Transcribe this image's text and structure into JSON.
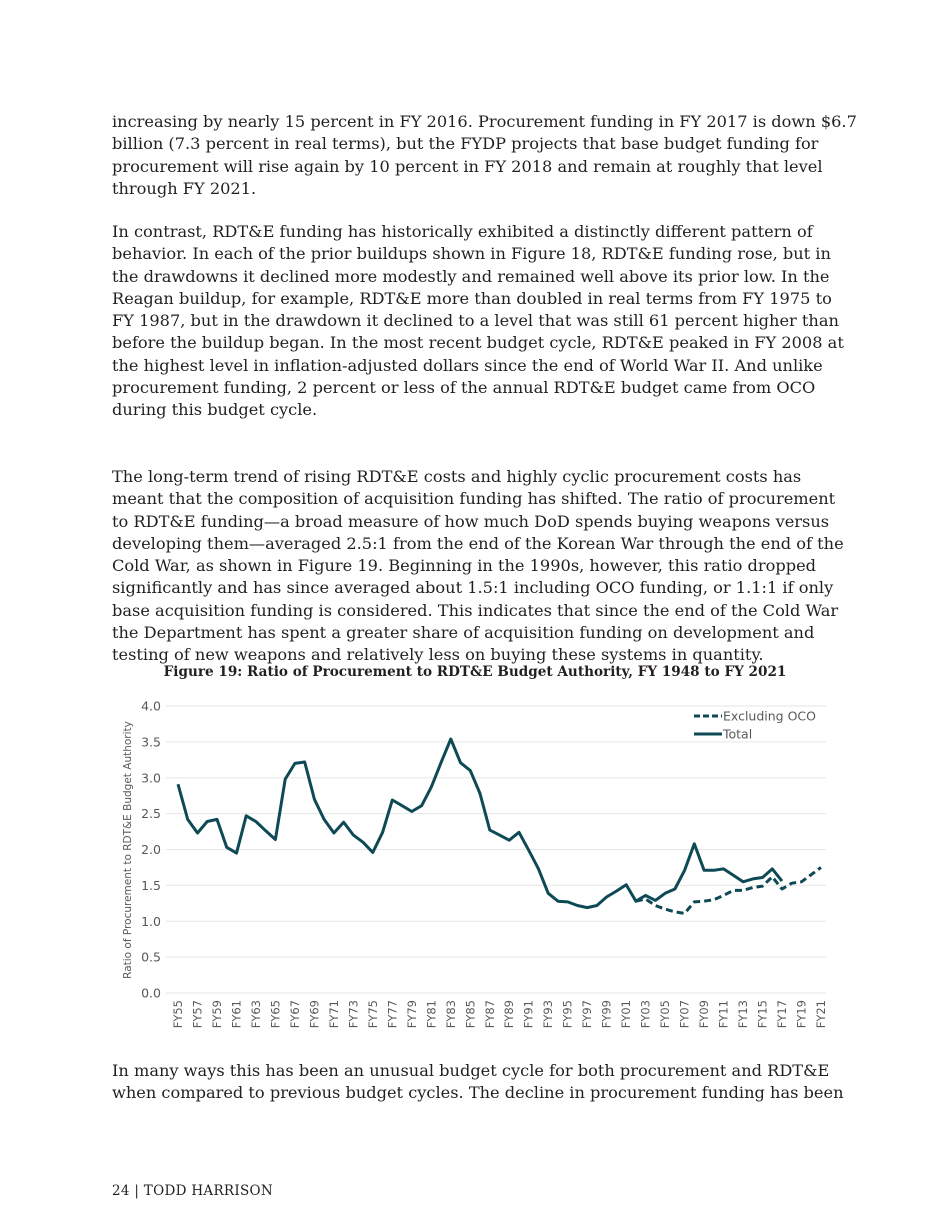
{
  "paragraphs": [
    [
      "increasing by nearly 15 percent in FY 2016. Procurement funding in FY 2017 is down $6.7",
      "billion (7.3 percent in real terms), but the FYDP projects that base budget funding for",
      "procurement will rise again by 10 percent in FY 2018 and remain at roughly that level",
      "through FY 2021."
    ],
    [
      "In contrast, RDT&E funding has historically exhibited a distinctly different pattern of",
      "behavior. In each of the prior buildups shown in Figure 18, RDT&E funding rose, but in",
      "the drawdowns it declined more modestly and remained well above its prior low. In the",
      "Reagan buildup, for example, RDT&E more than doubled in real terms from FY 1975 to",
      "FY 1987, but in the drawdown it declined to a level that was still 61 percent higher than",
      "before the buildup began. In the most recent budget cycle, RDT&E peaked in FY 2008 at",
      "the highest level in inflation-adjusted dollars since the end of World War II. And unlike",
      "procurement funding, 2 percent or less of the annual RDT&E budget came from OCO",
      "during this budget cycle."
    ],
    [
      "The long-term trend of rising RDT&E costs and highly cyclic procurement costs has",
      "meant that the composition of acquisition funding has shifted. The ratio of procurement",
      "to RDT&E funding—a broad measure of how much DoD spends buying weapons versus",
      "developing them—averaged 2.5:1 from the end of the Korean War through the end of the",
      "Cold War, as shown in Figure 19. Beginning in the 1990s, however, this ratio dropped",
      "significantly and has since averaged about 1.5:1 including OCO funding, or 1.1:1 if only",
      "base acquisition funding is considered. This indicates that since the end of the Cold War",
      "the Department has spent a greater share of acquisition funding on development and",
      "testing of new weapons and relatively less on buying these systems in quantity."
    ],
    [
      "In many ways this has been an unusual budget cycle for both procurement and RDT&E",
      "when compared to previous budget cycles. The decline in procurement funding has been"
    ]
  ],
  "figure_caption": "Figure 19: Ratio of Procurement to RDT&E Budget Authority, FY 1948 to FY 2021",
  "footer": "24 | TODD HARRISON",
  "chart_data": {
    "type": "line",
    "title": "",
    "ylabel": "Ratio of Procurement to RDT&E Budget Authority",
    "xlabel": "",
    "ylim": [
      0,
      4.0
    ],
    "yticks": [
      "0.0",
      "0.5",
      "1.0",
      "1.5",
      "2.0",
      "2.5",
      "3.0",
      "3.5",
      "4.0"
    ],
    "grid": "horizontal",
    "legend_position": "top-right",
    "line_color": "#0e4a55",
    "x": [
      "FY55",
      "FY56",
      "FY57",
      "FY58",
      "FY59",
      "FY60",
      "FY61",
      "FY62",
      "FY63",
      "FY64",
      "FY65",
      "FY66",
      "FY67",
      "FY68",
      "FY69",
      "FY70",
      "FY71",
      "FY72",
      "FY73",
      "FY74",
      "FY75",
      "FY76",
      "FY77",
      "FY78",
      "FY79",
      "FY80",
      "FY81",
      "FY82",
      "FY83",
      "FY84",
      "FY85",
      "FY86",
      "FY87",
      "FY88",
      "FY89",
      "FY90",
      "FY91",
      "FY92",
      "FY93",
      "FY94",
      "FY95",
      "FY96",
      "FY97",
      "FY98",
      "FY99",
      "FY00",
      "FY01",
      "FY02",
      "FY03",
      "FY04",
      "FY05",
      "FY06",
      "FY07",
      "FY08",
      "FY09",
      "FY10",
      "FY11",
      "FY12",
      "FY13",
      "FY14",
      "FY15",
      "FY16",
      "FY17",
      "FY18",
      "FY19",
      "FY20",
      "FY21"
    ],
    "xticks": [
      "FY55",
      "FY57",
      "FY59",
      "FY61",
      "FY63",
      "FY65",
      "FY67",
      "FY69",
      "FY71",
      "FY73",
      "FY75",
      "FY77",
      "FY79",
      "FY81",
      "FY83",
      "FY85",
      "FY87",
      "FY89",
      "FY91",
      "FY93",
      "FY95",
      "FY97",
      "FY99",
      "FY01",
      "FY03",
      "FY05",
      "FY07",
      "FY09",
      "FY11",
      "FY13",
      "FY15",
      "FY17",
      "FY19",
      "FY21"
    ],
    "series": [
      {
        "name": "Excluding OCO",
        "style": "dashed",
        "values": [
          null,
          null,
          null,
          null,
          null,
          null,
          null,
          null,
          null,
          null,
          null,
          null,
          null,
          null,
          null,
          null,
          null,
          null,
          null,
          null,
          null,
          null,
          null,
          null,
          null,
          null,
          null,
          null,
          null,
          null,
          null,
          null,
          null,
          null,
          null,
          null,
          null,
          null,
          null,
          null,
          null,
          null,
          null,
          null,
          null,
          null,
          null,
          1.28,
          1.31,
          1.22,
          1.17,
          1.13,
          1.11,
          1.27,
          1.28,
          1.3,
          1.36,
          1.43,
          1.43,
          1.47,
          1.49,
          1.62,
          1.45,
          1.53,
          1.55,
          1.65,
          1.75
        ]
      },
      {
        "name": "Total",
        "style": "solid",
        "values": [
          2.91,
          2.42,
          2.23,
          2.39,
          2.42,
          2.03,
          1.95,
          2.47,
          2.39,
          2.26,
          2.14,
          2.98,
          3.2,
          3.22,
          2.7,
          2.42,
          2.23,
          2.38,
          2.2,
          2.1,
          1.96,
          2.24,
          2.69,
          2.61,
          2.53,
          2.61,
          2.87,
          3.21,
          3.54,
          3.21,
          3.1,
          2.78,
          2.27,
          2.2,
          2.13,
          2.24,
          1.99,
          1.73,
          1.39,
          1.28,
          1.27,
          1.22,
          1.19,
          1.22,
          1.34,
          1.42,
          1.51,
          1.28,
          1.36,
          1.29,
          1.39,
          1.45,
          1.71,
          2.08,
          1.71,
          1.71,
          1.73,
          1.64,
          1.55,
          1.59,
          1.61,
          1.73,
          1.56,
          null,
          null,
          null,
          null
        ]
      }
    ]
  }
}
